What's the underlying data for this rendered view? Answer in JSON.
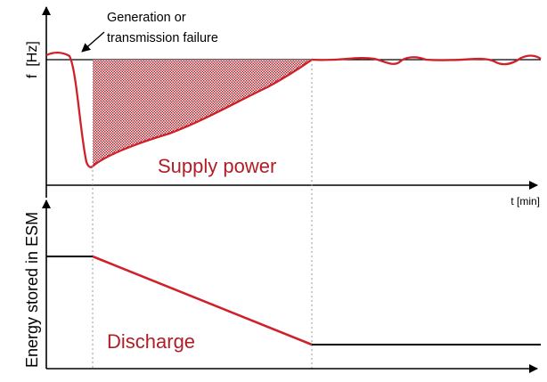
{
  "annotation": {
    "line1": "Generation or",
    "line2": "transmission failure"
  },
  "top_panel": {
    "y_label": "f  [Hz]",
    "x_label": "t [min]",
    "region_label": "Supply power"
  },
  "bottom_panel": {
    "y_label": "Energy stored in ESM",
    "region_label": "Discharge"
  },
  "colors": {
    "curve": "#d0202a",
    "region_text": "#b01e25",
    "axis": "#000000",
    "guide": "#9a9a9a"
  }
}
